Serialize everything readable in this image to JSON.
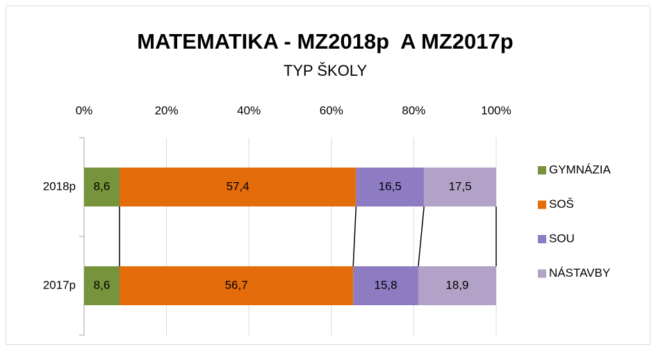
{
  "chart_data": {
    "type": "stacked_bar_horizontal",
    "title": "MATEMATIKA - MZ2018p  A MZ2017p",
    "subtitle": "TYP ŠKOLY",
    "categories": [
      "2018p",
      "2017p"
    ],
    "series": [
      {
        "name": "GYMNÁZIA",
        "color": "#77933c",
        "values": [
          8.6,
          8.6
        ],
        "value_labels": [
          "8,6",
          "8,6"
        ]
      },
      {
        "name": "SOŠ",
        "color": "#e46c0a",
        "values": [
          57.4,
          56.7
        ],
        "value_labels": [
          "57,4",
          "56,7"
        ]
      },
      {
        "name": "SOU",
        "color": "#8e7cc3",
        "values": [
          16.5,
          15.8
        ],
        "value_labels": [
          "16,5",
          "15,8"
        ]
      },
      {
        "name": "NÁSTAVBY",
        "color": "#b3a2c7",
        "values": [
          17.5,
          18.9
        ],
        "value_labels": [
          "17,5",
          "18,9"
        ]
      }
    ],
    "xlim": [
      0,
      100
    ],
    "xticks": [
      {
        "value": 0,
        "label": "0%"
      },
      {
        "value": 20,
        "label": "20%"
      },
      {
        "value": 40,
        "label": "40%"
      },
      {
        "value": 60,
        "label": "60%"
      },
      {
        "value": 80,
        "label": "80%"
      },
      {
        "value": 100,
        "label": "100%"
      }
    ],
    "grid": true,
    "legend": "right"
  }
}
